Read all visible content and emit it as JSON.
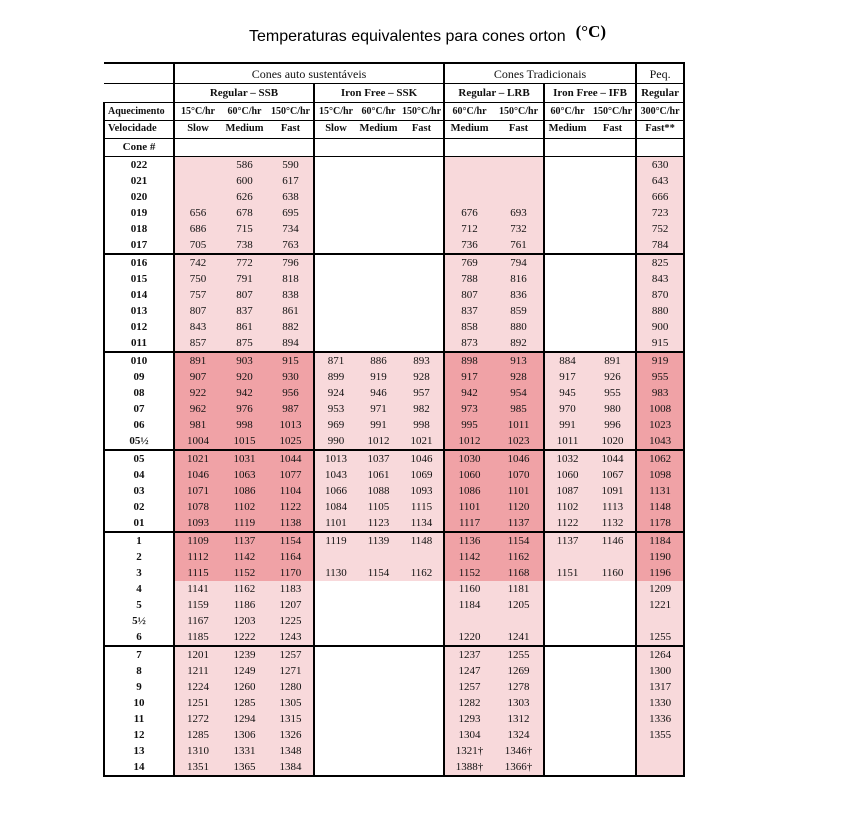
{
  "title": "Temperaturas equivalentes para cones orton",
  "title_unit": "(°C)",
  "colors": {
    "light_pink": "#f8d9db",
    "dark_pink": "#f0a2a6"
  },
  "table": {
    "group_headers": [
      {
        "label": "Cones auto sustentáveis",
        "span": 6
      },
      {
        "label": "Cones Tradicionais",
        "span": 4
      },
      {
        "label": "Peq.",
        "span": 1
      }
    ],
    "series_headers": [
      {
        "label": "Regular – SSB",
        "span": 3
      },
      {
        "label": "Iron Free – SSK",
        "span": 3
      },
      {
        "label": "Regular – LRB",
        "span": 2
      },
      {
        "label": "Iron Free – IFB",
        "span": 2
      },
      {
        "label": "Regular",
        "span": 1
      }
    ],
    "row_labels": {
      "heating": "Aquecimento",
      "speed": "Velocidade",
      "cone": "Cone #"
    },
    "heating_rates": [
      "15°C/hr",
      "60°C/hr",
      "150°C/hr",
      "15°C/hr",
      "60°C/hr",
      "150°C/hr",
      "60°C/hr",
      "150°C/hr",
      "60°C/hr",
      "150°C/hr",
      "300°C/hr"
    ],
    "speeds": [
      "Slow",
      "Medium",
      "Fast",
      "Slow",
      "Medium",
      "Fast",
      "Medium",
      "Fast",
      "Medium",
      "Fast",
      "Fast**"
    ],
    "rows": [
      {
        "cone": "022",
        "tier": "A",
        "values": [
          "",
          "586",
          "590",
          "",
          "",
          "",
          "",
          "",
          "",
          "",
          "630"
        ]
      },
      {
        "cone": "021",
        "tier": "A",
        "values": [
          "",
          "600",
          "617",
          "",
          "",
          "",
          "",
          "",
          "",
          "",
          "643"
        ]
      },
      {
        "cone": "020",
        "tier": "A",
        "values": [
          "",
          "626",
          "638",
          "",
          "",
          "",
          "",
          "",
          "",
          "",
          "666"
        ]
      },
      {
        "cone": "019",
        "tier": "A",
        "values": [
          "656",
          "678",
          "695",
          "",
          "",
          "",
          "676",
          "693",
          "",
          "",
          "723"
        ]
      },
      {
        "cone": "018",
        "tier": "A",
        "values": [
          "686",
          "715",
          "734",
          "",
          "",
          "",
          "712",
          "732",
          "",
          "",
          "752"
        ]
      },
      {
        "cone": "017",
        "tier": "A",
        "values": [
          "705",
          "738",
          "763",
          "",
          "",
          "",
          "736",
          "761",
          "",
          "",
          "784"
        ]
      },
      {
        "cone": "016",
        "tier": "A",
        "group_start": true,
        "values": [
          "742",
          "772",
          "796",
          "",
          "",
          "",
          "769",
          "794",
          "",
          "",
          "825"
        ]
      },
      {
        "cone": "015",
        "tier": "A",
        "values": [
          "750",
          "791",
          "818",
          "",
          "",
          "",
          "788",
          "816",
          "",
          "",
          "843"
        ]
      },
      {
        "cone": "014",
        "tier": "A",
        "values": [
          "757",
          "807",
          "838",
          "",
          "",
          "",
          "807",
          "836",
          "",
          "",
          "870"
        ]
      },
      {
        "cone": "013",
        "tier": "A",
        "values": [
          "807",
          "837",
          "861",
          "",
          "",
          "",
          "837",
          "859",
          "",
          "",
          "880"
        ]
      },
      {
        "cone": "012",
        "tier": "A",
        "values": [
          "843",
          "861",
          "882",
          "",
          "",
          "",
          "858",
          "880",
          "",
          "",
          "900"
        ]
      },
      {
        "cone": "011",
        "tier": "A",
        "values": [
          "857",
          "875",
          "894",
          "",
          "",
          "",
          "873",
          "892",
          "",
          "",
          "915"
        ]
      },
      {
        "cone": "010",
        "tier": "B",
        "group_start": true,
        "values": [
          "891",
          "903",
          "915",
          "871",
          "886",
          "893",
          "898",
          "913",
          "884",
          "891",
          "919"
        ]
      },
      {
        "cone": "09",
        "tier": "B",
        "values": [
          "907",
          "920",
          "930",
          "899",
          "919",
          "928",
          "917",
          "928",
          "917",
          "926",
          "955"
        ]
      },
      {
        "cone": "08",
        "tier": "B",
        "values": [
          "922",
          "942",
          "956",
          "924",
          "946",
          "957",
          "942",
          "954",
          "945",
          "955",
          "983"
        ]
      },
      {
        "cone": "07",
        "tier": "B",
        "values": [
          "962",
          "976",
          "987",
          "953",
          "971",
          "982",
          "973",
          "985",
          "970",
          "980",
          "1008"
        ]
      },
      {
        "cone": "06",
        "tier": "B",
        "values": [
          "981",
          "998",
          "1013",
          "969",
          "991",
          "998",
          "995",
          "1011",
          "991",
          "996",
          "1023"
        ]
      },
      {
        "cone": "05½",
        "tier": "B",
        "values": [
          "1004",
          "1015",
          "1025",
          "990",
          "1012",
          "1021",
          "1012",
          "1023",
          "1011",
          "1020",
          "1043"
        ]
      },
      {
        "cone": "05",
        "tier": "B",
        "group_start": true,
        "values": [
          "1021",
          "1031",
          "1044",
          "1013",
          "1037",
          "1046",
          "1030",
          "1046",
          "1032",
          "1044",
          "1062"
        ]
      },
      {
        "cone": "04",
        "tier": "B",
        "values": [
          "1046",
          "1063",
          "1077",
          "1043",
          "1061",
          "1069",
          "1060",
          "1070",
          "1060",
          "1067",
          "1098"
        ]
      },
      {
        "cone": "03",
        "tier": "B",
        "values": [
          "1071",
          "1086",
          "1104",
          "1066",
          "1088",
          "1093",
          "1086",
          "1101",
          "1087",
          "1091",
          "1131"
        ]
      },
      {
        "cone": "02",
        "tier": "B",
        "values": [
          "1078",
          "1102",
          "1122",
          "1084",
          "1105",
          "1115",
          "1101",
          "1120",
          "1102",
          "1113",
          "1148"
        ]
      },
      {
        "cone": "01",
        "tier": "B",
        "values": [
          "1093",
          "1119",
          "1138",
          "1101",
          "1123",
          "1134",
          "1117",
          "1137",
          "1122",
          "1132",
          "1178"
        ]
      },
      {
        "cone": "1",
        "tier": "B",
        "group_start": true,
        "values": [
          "1109",
          "1137",
          "1154",
          "1119",
          "1139",
          "1148",
          "1136",
          "1154",
          "1137",
          "1146",
          "1184"
        ]
      },
      {
        "cone": "2",
        "tier": "B",
        "values": [
          "1112",
          "1142",
          "1164",
          "",
          "",
          "",
          "1142",
          "1162",
          "",
          "",
          "1190"
        ]
      },
      {
        "cone": "3",
        "tier": "B",
        "values": [
          "1115",
          "1152",
          "1170",
          "1130",
          "1154",
          "1162",
          "1152",
          "1168",
          "1151",
          "1160",
          "1196"
        ]
      },
      {
        "cone": "4",
        "tier": "A",
        "values": [
          "1141",
          "1162",
          "1183",
          "",
          "",
          "",
          "1160",
          "1181",
          "",
          "",
          "1209"
        ]
      },
      {
        "cone": "5",
        "tier": "A",
        "values": [
          "1159",
          "1186",
          "1207",
          "",
          "",
          "",
          "1184",
          "1205",
          "",
          "",
          "1221"
        ]
      },
      {
        "cone": "5½",
        "tier": "A",
        "values": [
          "1167",
          "1203",
          "1225",
          "",
          "",
          "",
          "",
          "",
          "",
          "",
          ""
        ]
      },
      {
        "cone": "6",
        "tier": "A",
        "values": [
          "1185",
          "1222",
          "1243",
          "",
          "",
          "",
          "1220",
          "1241",
          "",
          "",
          "1255"
        ]
      },
      {
        "cone": "7",
        "tier": "A",
        "group_start": true,
        "values": [
          "1201",
          "1239",
          "1257",
          "",
          "",
          "",
          "1237",
          "1255",
          "",
          "",
          "1264"
        ]
      },
      {
        "cone": "8",
        "tier": "A",
        "values": [
          "1211",
          "1249",
          "1271",
          "",
          "",
          "",
          "1247",
          "1269",
          "",
          "",
          "1300"
        ]
      },
      {
        "cone": "9",
        "tier": "A",
        "values": [
          "1224",
          "1260",
          "1280",
          "",
          "",
          "",
          "1257",
          "1278",
          "",
          "",
          "1317"
        ]
      },
      {
        "cone": "10",
        "tier": "A",
        "values": [
          "1251",
          "1285",
          "1305",
          "",
          "",
          "",
          "1282",
          "1303",
          "",
          "",
          "1330"
        ]
      },
      {
        "cone": "11",
        "tier": "A",
        "values": [
          "1272",
          "1294",
          "1315",
          "",
          "",
          "",
          "1293",
          "1312",
          "",
          "",
          "1336"
        ]
      },
      {
        "cone": "12",
        "tier": "A",
        "values": [
          "1285",
          "1306",
          "1326",
          "",
          "",
          "",
          "1304",
          "1324",
          "",
          "",
          "1355"
        ]
      },
      {
        "cone": "13",
        "tier": "A",
        "values": [
          "1310",
          "1331",
          "1348",
          "",
          "",
          "",
          "1321†",
          "1346†",
          "",
          "",
          ""
        ]
      },
      {
        "cone": "14",
        "tier": "A",
        "values": [
          "1351",
          "1365",
          "1384",
          "",
          "",
          "",
          "1388†",
          "1366†",
          "",
          "",
          ""
        ]
      }
    ]
  }
}
